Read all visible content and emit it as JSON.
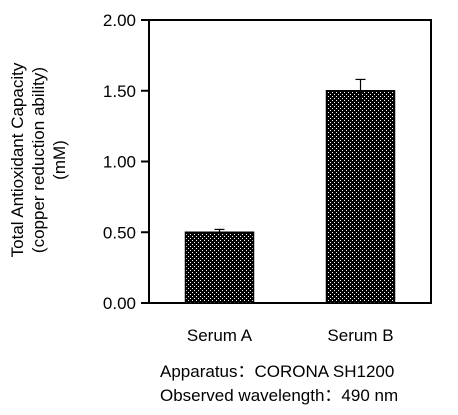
{
  "chart_data": {
    "type": "bar",
    "categories": [
      "Serum A",
      "Serum B"
    ],
    "values": [
      0.5,
      1.5
    ],
    "errors": [
      0.02,
      0.08
    ],
    "ylabel": [
      "Total Antioxidant Capacity",
      "(copper reduction ability)",
      "(mM)"
    ],
    "xlabel": "",
    "ylim": [
      0,
      2.0
    ],
    "yticks": [
      "0.00",
      "0.50",
      "1.00",
      "1.50",
      "2.00"
    ],
    "grid": false,
    "bar_fill": "checkered black and white",
    "bar_color": "#000000"
  },
  "notes": {
    "apparatus": "Apparatus：CORONA SH1200",
    "wavelength": "Observed wavelength：490 nm"
  }
}
